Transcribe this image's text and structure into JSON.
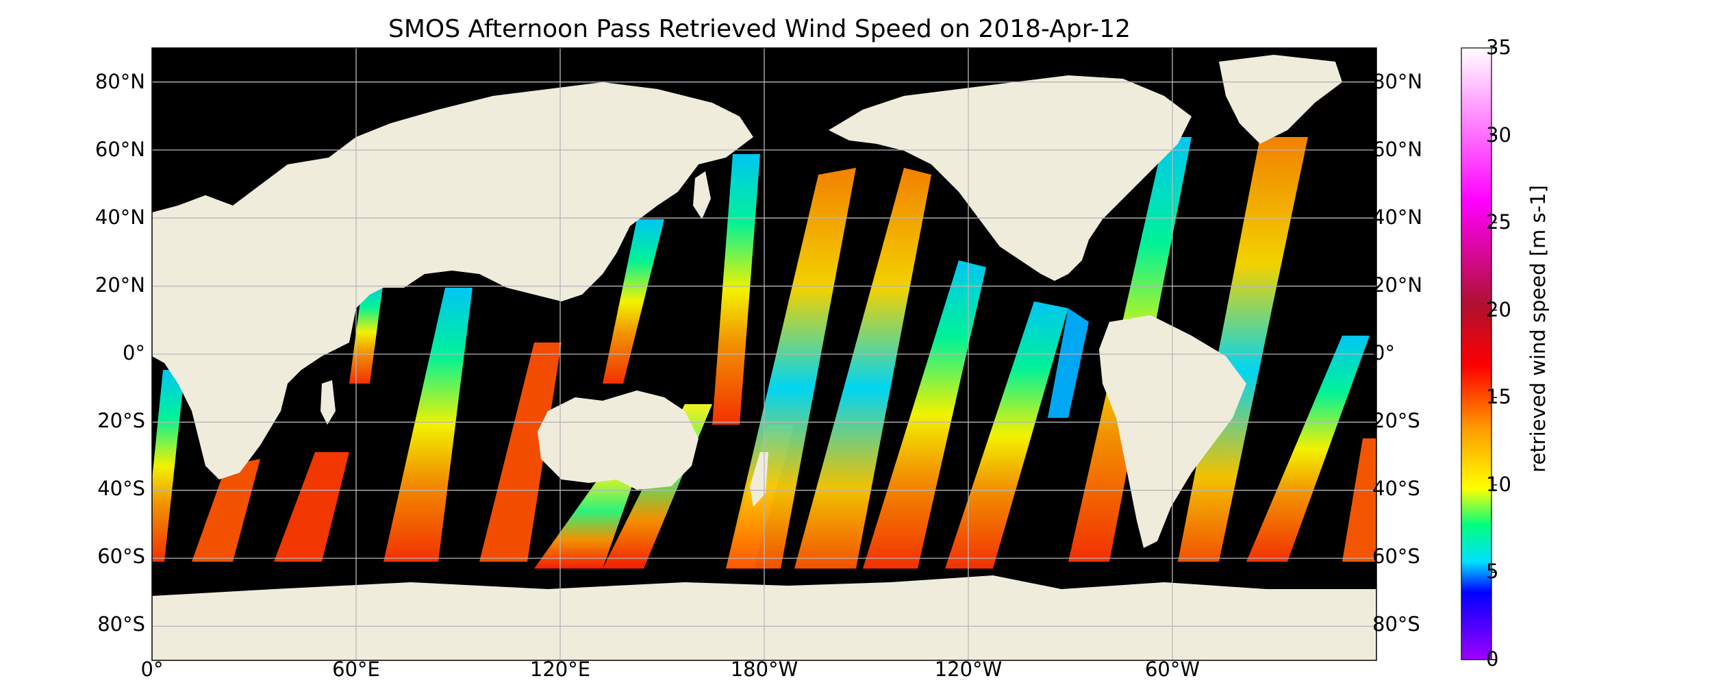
{
  "title": "SMOS Afternoon Pass Retrieved Wind Speed on 2018-Apr-12",
  "map": {
    "projection": "plate-carree",
    "background": "ocean-masked",
    "land_color": "#efecdc",
    "ocean_color": "#000000",
    "grid": true,
    "lat_ticks": [
      "80°N",
      "60°N",
      "40°N",
      "20°N",
      "0°",
      "20°S",
      "40°S",
      "60°S",
      "80°S"
    ],
    "lon_ticks": [
      "0°",
      "60°E",
      "120°E",
      "180°W",
      "120°W",
      "60°W"
    ]
  },
  "colorbar": {
    "label": "retrieved wind speed [m s-1]",
    "min": 0,
    "max": 35,
    "ticks": [
      "35",
      "30",
      "25",
      "20",
      "15",
      "10",
      "5",
      "0"
    ],
    "colormap": [
      "#a000ff",
      "#0000ff",
      "#00e0ff",
      "#00ff80",
      "#ffff00",
      "#ff9900",
      "#ff0000",
      "#b01030",
      "#ff00ff",
      "#ffffff"
    ]
  },
  "swaths": {
    "pass": "afternoon",
    "orientation": "tilted-northeast",
    "typical_speed_range": "5-15"
  }
}
